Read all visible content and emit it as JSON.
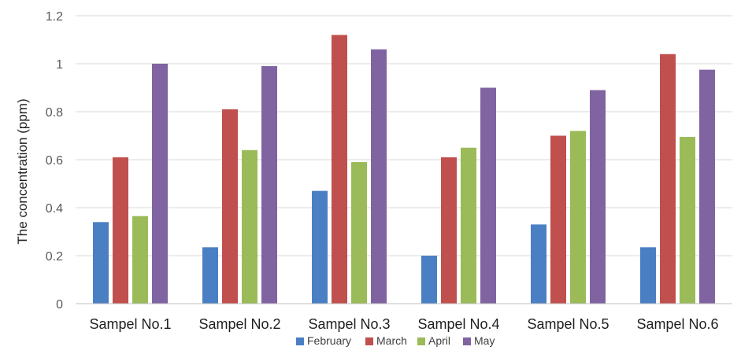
{
  "chart_data": {
    "type": "bar",
    "title": "",
    "xlabel": "",
    "ylabel": "The concentration (ppm)",
    "ylim": [
      0,
      1.2
    ],
    "yticks": [
      "0",
      "0.2",
      "0.4",
      "0.6",
      "0.8",
      "1",
      "1.2"
    ],
    "grid": true,
    "legend_position": "bottom",
    "categories": [
      "Sampel No.1",
      "Sampel No.2",
      "Sampel No.3",
      "Sampel No.4",
      "Sampel No.5",
      "Sampel No.6"
    ],
    "series": [
      {
        "name": "February",
        "color": "#4a7fc4",
        "values": [
          0.34,
          0.235,
          0.47,
          0.2,
          0.33,
          0.235
        ]
      },
      {
        "name": "March",
        "color": "#c0504d",
        "values": [
          0.61,
          0.81,
          1.12,
          0.61,
          0.7,
          1.04
        ]
      },
      {
        "name": "April",
        "color": "#9bbb59",
        "values": [
          0.365,
          0.64,
          0.59,
          0.65,
          0.72,
          0.695
        ]
      },
      {
        "name": "May",
        "color": "#8064a2",
        "values": [
          1.0,
          0.99,
          1.06,
          0.9,
          0.89,
          0.975
        ]
      }
    ]
  }
}
